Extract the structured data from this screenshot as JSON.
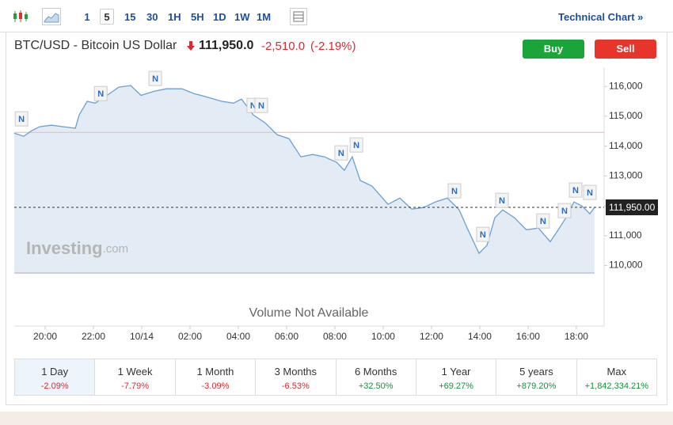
{
  "toolbar": {
    "intervals": [
      "1",
      "5",
      "15",
      "30",
      "1H",
      "5H",
      "1D",
      "1W",
      "1M"
    ],
    "selected_interval": "5",
    "technical_chart": "Technical Chart »"
  },
  "header": {
    "title": "BTC/USD - Bitcoin US Dollar",
    "price": "111,950.0",
    "change": "-2,510.0",
    "change_percent": "(-2.19%)",
    "buy": "Buy",
    "sell": "Sell"
  },
  "chart_data": {
    "type": "area",
    "x": [
      18.72,
      19.11,
      19.44,
      19.77,
      20.26,
      20.75,
      21.25,
      21.41,
      21.74,
      22.07,
      22.56,
      23.05,
      23.54,
      23.97,
      24.52,
      25.02,
      25.67,
      26.16,
      26.66,
      27.31,
      27.8,
      28.13,
      28.62,
      29.11,
      29.61,
      30.1,
      30.59,
      31.08,
      31.57,
      32.07,
      32.39,
      32.72,
      33.05,
      33.54,
      34.2,
      34.69,
      35.18,
      35.67,
      36.16,
      36.66,
      37.15,
      37.48,
      37.97,
      38.3,
      38.62,
      38.95,
      39.44,
      39.93,
      40.43,
      40.92,
      41.25,
      41.57,
      41.9,
      42.23,
      42.56,
      42.75
    ],
    "values": [
      114436,
      114330,
      114516,
      114650,
      114700,
      114650,
      114600,
      115046,
      115500,
      115440,
      115700,
      115975,
      116030,
      115700,
      115840,
      115920,
      115920,
      115760,
      115655,
      115500,
      115440,
      115575,
      115046,
      114780,
      114380,
      114250,
      113640,
      113720,
      113640,
      113460,
      113190,
      113640,
      112850,
      112660,
      112050,
      112260,
      111890,
      111945,
      112130,
      112260,
      111865,
      111255,
      110410,
      110680,
      111600,
      111865,
      111600,
      111200,
      111255,
      110800,
      111200,
      111600,
      112130,
      112000,
      111735,
      111950
    ],
    "color": "#6a9fd3",
    "fill": "#e3ecf5",
    "xlim": [
      18.72,
      43.15
    ],
    "xticks": [
      {
        "value": 20,
        "label": "20:00"
      },
      {
        "value": 22,
        "label": "22:00"
      },
      {
        "value": 24,
        "label": "10/14"
      },
      {
        "value": 26,
        "label": "02:00"
      },
      {
        "value": 28,
        "label": "04:00"
      },
      {
        "value": 30,
        "label": "06:00"
      },
      {
        "value": 32,
        "label": "08:00"
      },
      {
        "value": 34,
        "label": "10:00"
      },
      {
        "value": 36,
        "label": "12:00"
      },
      {
        "value": 38,
        "label": "14:00"
      },
      {
        "value": 40,
        "label": "16:00"
      },
      {
        "value": 42,
        "label": "18:00"
      }
    ],
    "ylim": [
      109750,
      116640
    ],
    "yticks": [
      {
        "value": 110000,
        "label": "110,000"
      },
      {
        "value": 111000,
        "label": "111,000"
      },
      {
        "value": 112000,
        "label": "112,000"
      },
      {
        "value": 113000,
        "label": "113,000"
      },
      {
        "value": 114000,
        "label": "114,000"
      },
      {
        "value": 115000,
        "label": "115,000"
      },
      {
        "value": 116000,
        "label": "116,000"
      }
    ],
    "reference_line": {
      "value": 114460,
      "color": "#f2b3b3"
    },
    "last_price": {
      "value": 111950,
      "label": "111,950.00"
    },
    "news_markers": {
      "label": "N",
      "x": [
        19.02,
        22.3,
        24.56,
        28.62,
        28.95,
        32.26,
        32.89,
        36.95,
        38.13,
        38.92,
        40.62,
        41.51,
        41.97,
        42.56
      ],
      "y": [
        114913,
        115760,
        116265,
        115364,
        115364,
        113774,
        114039,
        112502,
        111045,
        112184,
        111495,
        111840,
        112529,
        112449
      ]
    },
    "watermark": {
      "brand": "Investing",
      "suffix": ".com"
    },
    "volume_note": "Volume Not Available"
  },
  "periods": [
    {
      "label": "1 Day",
      "change": "-2.09%"
    },
    {
      "label": "1 Week",
      "change": "-7.79%"
    },
    {
      "label": "1 Month",
      "change": "-3.09%"
    },
    {
      "label": "3 Months",
      "change": "-6.53%"
    },
    {
      "label": "6 Months",
      "change": "+32.50%"
    },
    {
      "label": "1 Year",
      "change": "+69.27%"
    },
    {
      "label": "5 years",
      "change": "+879.20%"
    },
    {
      "label": "Max",
      "change": "+1,842,334.21%"
    }
  ],
  "selected_period": "1 Day"
}
